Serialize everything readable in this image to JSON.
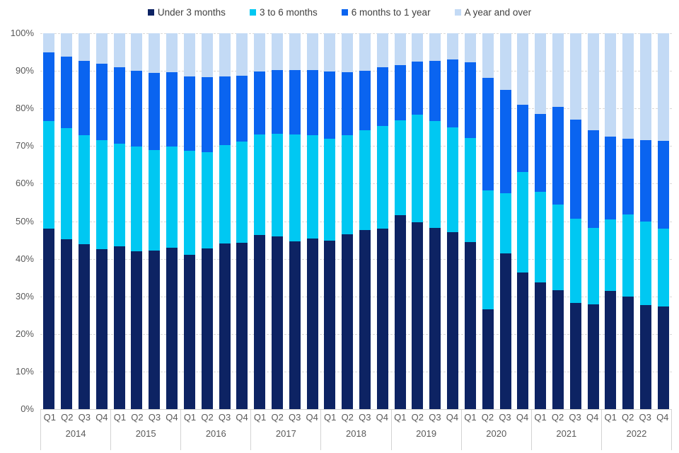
{
  "chart_data": {
    "type": "bar",
    "variant": "100%-stacked-column",
    "title": "",
    "xlabel": "",
    "ylabel": "",
    "ylim": [
      0,
      100
    ],
    "grid": "horizontal-dashed",
    "legend_position": "top-center",
    "y_ticks": [
      "100%",
      "90%",
      "80%",
      "70%",
      "60%",
      "50%",
      "40%",
      "30%",
      "20%",
      "10%",
      "0%"
    ],
    "years": [
      "2014",
      "2015",
      "2016",
      "2017",
      "2018",
      "2019",
      "2020",
      "2021",
      "2022"
    ],
    "quarters": [
      "Q1",
      "Q2",
      "Q3",
      "Q4"
    ],
    "series": [
      {
        "name": "Under 3 months",
        "color": "#0d2363",
        "values": [
          48.0,
          45.2,
          43.9,
          42.6,
          43.4,
          42.0,
          42.2,
          42.9,
          41.1,
          42.7,
          44.0,
          44.3,
          46.4,
          46.0,
          44.6,
          45.4,
          44.9,
          46.6,
          47.6,
          48.1,
          51.6,
          49.7,
          48.2,
          47.0,
          44.5,
          26.5,
          41.5,
          36.3,
          33.8,
          31.6,
          28.2,
          27.8,
          31.4,
          30.0,
          27.6,
          27.3
        ]
      },
      {
        "name": "3 to 6 months",
        "color": "#00c8f2",
        "values": [
          28.7,
          29.5,
          28.9,
          28.9,
          27.2,
          27.8,
          26.8,
          26.9,
          27.7,
          25.6,
          26.3,
          26.8,
          26.6,
          27.3,
          28.4,
          27.4,
          27.0,
          26.3,
          26.6,
          27.3,
          25.2,
          28.6,
          28.4,
          27.9,
          27.7,
          31.7,
          15.9,
          26.7,
          24.1,
          22.8,
          22.5,
          20.5,
          19.0,
          21.7,
          22.3,
          20.8
        ]
      },
      {
        "name": "6 months to 1 year",
        "color": "#0a64f0",
        "values": [
          18.2,
          19.1,
          19.9,
          20.4,
          20.4,
          20.2,
          20.5,
          19.9,
          19.8,
          20.0,
          18.3,
          17.7,
          16.8,
          16.9,
          17.3,
          17.5,
          17.9,
          16.8,
          15.9,
          15.6,
          14.7,
          14.1,
          16.0,
          18.1,
          20.0,
          30.0,
          27.5,
          18.0,
          20.6,
          26.0,
          26.4,
          26.0,
          22.2,
          20.2,
          21.7,
          23.2
        ]
      },
      {
        "name": "A year and over",
        "color": "#c3daf5",
        "values": [
          5.1,
          6.2,
          7.3,
          8.1,
          9.0,
          10.0,
          10.5,
          10.3,
          11.4,
          11.7,
          11.4,
          11.2,
          10.2,
          9.8,
          9.7,
          9.7,
          10.2,
          10.3,
          9.9,
          9.0,
          8.5,
          7.6,
          7.4,
          7.0,
          7.8,
          11.8,
          15.1,
          19.0,
          21.5,
          19.6,
          22.9,
          25.7,
          27.4,
          28.1,
          28.4,
          28.7
        ]
      }
    ],
    "colors": {
      "gridline": "#d9d9d9",
      "axis_line": "#d3d3d3",
      "tick_text": "#595959",
      "legend_text": "#404040"
    }
  },
  "legend": {
    "items": [
      {
        "label": "Under 3 months"
      },
      {
        "label": "3 to 6 months"
      },
      {
        "label": "6 months to 1 year"
      },
      {
        "label": "A year and over"
      }
    ]
  }
}
